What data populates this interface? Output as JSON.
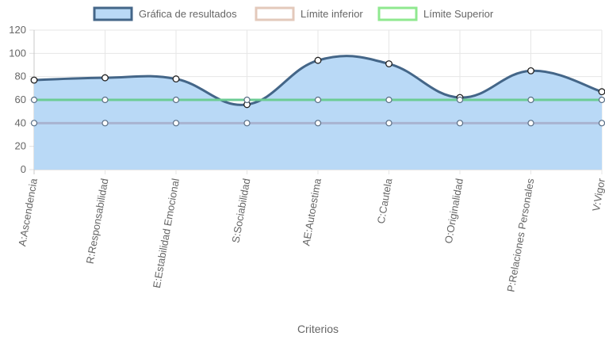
{
  "chart_data": {
    "type": "line",
    "categories": [
      "A:Ascendencia",
      "R:Responsabilidad",
      "E:Estabilidad Emocional",
      "S:Sociabilidad",
      "AE:Autoestima",
      "C:Cautela",
      "O:Originalidad",
      "P:Relaciones Personales",
      "V:Vigor"
    ],
    "series": [
      {
        "name": "Gráfica de resultados",
        "values": [
          77,
          79,
          78,
          56,
          94,
          91,
          62,
          85,
          67
        ],
        "color": "#446688",
        "fill": "#b9d9f6",
        "filled": true
      },
      {
        "name": "Límite inferior",
        "values": [
          40,
          40,
          40,
          40,
          40,
          40,
          40,
          40,
          40
        ],
        "color": "#a8b3d0",
        "legend_color": "#e3c9bb",
        "filled": false
      },
      {
        "name": "Límite Superior",
        "values": [
          60,
          60,
          60,
          60,
          60,
          60,
          60,
          60,
          60
        ],
        "color": "#6ccc94",
        "legend_color": "#8fe88f",
        "filled": false
      }
    ],
    "xlabel": "Criterios",
    "ylabel": "",
    "ylim": [
      0,
      120
    ],
    "yticks": [
      0,
      20,
      40,
      60,
      80,
      100,
      120
    ],
    "grid": true,
    "legend_position": "top"
  }
}
